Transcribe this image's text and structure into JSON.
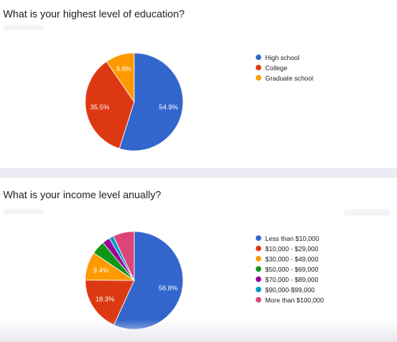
{
  "chart_data": [
    {
      "type": "pie",
      "title": "What is your highest level of education?",
      "categories": [
        "High school",
        "College",
        "Graduate school"
      ],
      "values": [
        54.9,
        35.5,
        9.6
      ],
      "value_labels": [
        "54.9%",
        "35.5%",
        "9.6%"
      ],
      "colors": [
        "#3366cc",
        "#dc3912",
        "#ff9900"
      ],
      "legend": "right"
    },
    {
      "type": "pie",
      "title": "What is your income level anually?",
      "categories": [
        "Less than $10,000",
        "$10,000 - $29,000",
        "$30,000 - $49,000",
        "$50,000 - $69,000",
        "$70,000 - $89,000",
        "$90,000-$99,000",
        "More than $100,000"
      ],
      "values": [
        56.8,
        18.3,
        9.4,
        4.5,
        2.5,
        1.5,
        7.0
      ],
      "value_labels": [
        "56.8%",
        "18.3%",
        "9.4%",
        "",
        "",
        "",
        ""
      ],
      "colors": [
        "#3366cc",
        "#dc3912",
        "#ff9900",
        "#109618",
        "#990099",
        "#0099c6",
        "#dd4477"
      ],
      "legend": "right"
    }
  ]
}
